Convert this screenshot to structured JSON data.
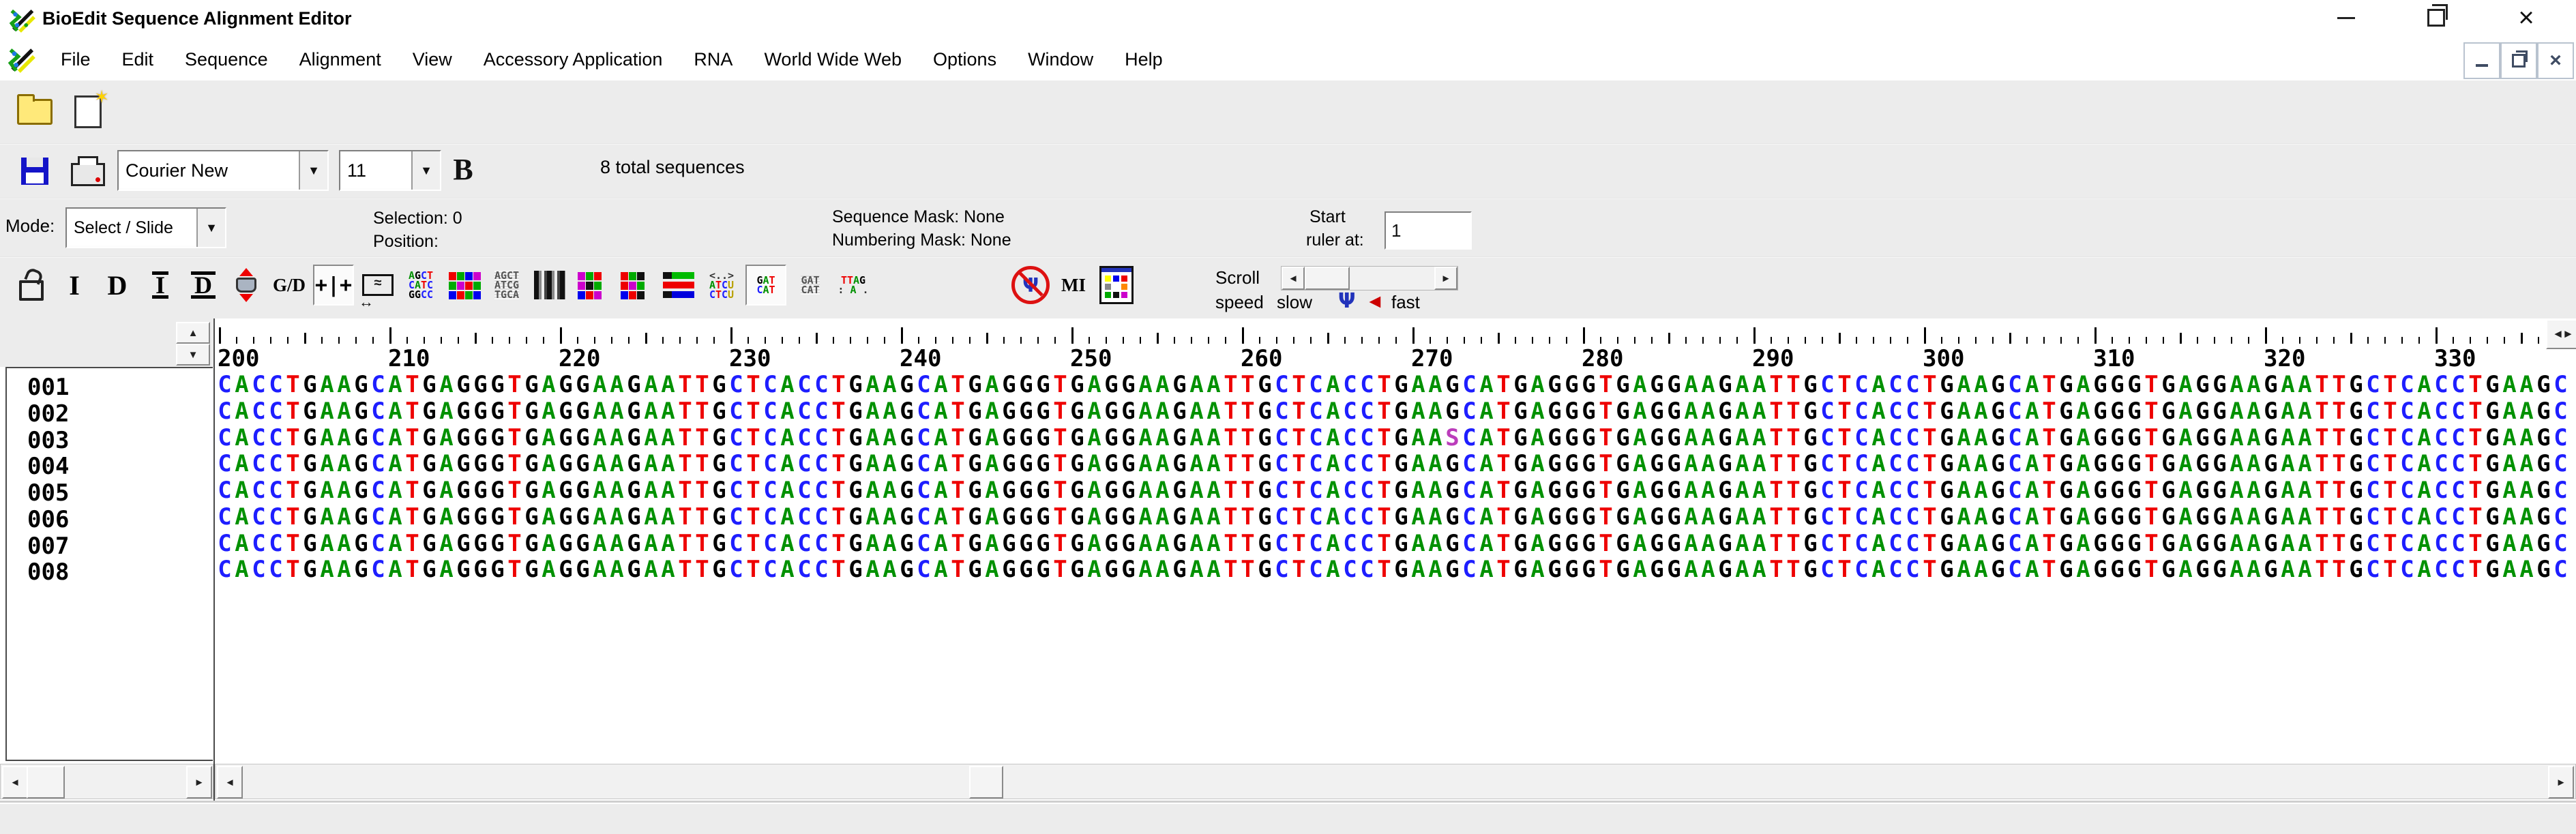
{
  "window": {
    "title": "BioEdit Sequence Alignment Editor"
  },
  "menu": {
    "items": [
      "File",
      "Edit",
      "Sequence",
      "Alignment",
      "View",
      "Accessory Application",
      "RNA",
      "World Wide Web",
      "Options",
      "Window",
      "Help"
    ]
  },
  "format_bar": {
    "font_name": "Courier New",
    "font_size": "11",
    "bold_label": "B",
    "total_sequences_label": "8 total sequences"
  },
  "mode_bar": {
    "mode_label": "Mode:",
    "mode_value": "Select / Slide",
    "selection_label": "Selection: 0",
    "position_label": "Position:",
    "sequence_mask_label": "Sequence Mask: None",
    "numbering_mask_label": "Numbering Mask: None",
    "start_label": "Start",
    "ruler_at_label": "ruler at:",
    "start_ruler_value": "1"
  },
  "tools": {
    "icons": [
      {
        "name": "unlock-icon",
        "type": "unlock"
      },
      {
        "name": "insert-gaps-button",
        "type": "serif",
        "glyph": "I"
      },
      {
        "name": "delete-gaps-button",
        "type": "serif",
        "glyph": "D"
      },
      {
        "name": "insert-limits-button",
        "type": "serif-bars",
        "glyph": "I"
      },
      {
        "name": "delete-limits-button",
        "type": "serif-bars",
        "glyph": "D"
      },
      {
        "name": "grab-and-drag-button",
        "type": "grab"
      },
      {
        "name": "gap-dash-toggle-button",
        "type": "gd",
        "glyph": "G/D"
      },
      {
        "name": "slide-mode-button",
        "type": "slide",
        "glyph": "+|+",
        "pressed": true
      },
      {
        "name": "select-span-button",
        "type": "scan",
        "glyph": "≈"
      },
      {
        "name": "color-letters-button",
        "type": "lines",
        "lines": [
          "AGCT",
          "CATC",
          "GGCC"
        ],
        "colored": true
      },
      {
        "name": "block-colors-button",
        "type": "grid12"
      },
      {
        "name": "plain-letters-button",
        "type": "lines",
        "lines": [
          "AGCT",
          "ATCG",
          "TGCA"
        ],
        "colored": false
      },
      {
        "name": "grayscale-shade-button",
        "type": "bars"
      },
      {
        "name": "inverse-magenta-button",
        "type": "gridm"
      },
      {
        "name": "inverse-red-button",
        "type": "gridr"
      },
      {
        "name": "identity-bars-button",
        "type": "rgb"
      },
      {
        "name": "similarity-view-button",
        "type": "lines",
        "lines": [
          "<..>",
          "ATCU",
          "CTCU"
        ],
        "colored": true
      },
      {
        "name": "translate-colors-button",
        "type": "lines",
        "lines": [
          "GAT",
          "CAT"
        ],
        "colored": true,
        "pressed": true
      },
      {
        "name": "translate-plain-button",
        "type": "lines",
        "lines": [
          "GAT",
          "CAT"
        ],
        "colored": false
      },
      {
        "name": "conservation-dots-button",
        "type": "lines",
        "lines": [
          "TTAG",
          ": A ."
        ],
        "colored": true
      },
      {
        "name": "spacer",
        "type": "spacer"
      },
      {
        "name": "psi-disabled-button",
        "type": "psi",
        "glyph": "Ψ"
      },
      {
        "name": "mutual-information-button",
        "type": "gd",
        "glyph": "MI"
      },
      {
        "name": "color-palette-button",
        "type": "palette"
      }
    ],
    "scroll_speed": {
      "line1": "Scroll",
      "line2": "speed",
      "slow_label": "slow",
      "fast_label": "fast",
      "psi_glyph": "Ψ",
      "arrow_glyph": "◄"
    }
  },
  "alignment": {
    "ruler_start": 200,
    "nucleotide_colors": {
      "A": "#009100",
      "C": "#1e1eff",
      "G": "#000000",
      "T": "#ee0000",
      "S": "#bb3dbb",
      "U": "#b8a000"
    },
    "sequences": [
      {
        "name": "001",
        "seq": "CACCTGAAGCATGAGGGTGAGGAAGAATTGCTCACCTGAAGCATGAGGGTGAGGAAGAATTGCTCACCTGAAGCATGAGGGTGAGGAAGAATTGCTCACCTGAAGCATGAGGGTGAGGAAGAATTGCTCACCTGAAGC"
      },
      {
        "name": "002",
        "seq": "CACCTGAAGCATGAGGGTGAGGAAGAATTGCTCACCTGAAGCATGAGGGTGAGGAAGAATTGCTCACCTGAAGCATGAGGGTGAGGAAGAATTGCTCACCTGAAGCATGAGGGTGAGGAAGAATTGCTCACCTGAAGC"
      },
      {
        "name": "003",
        "seq": "CACCTGAAGCATGAGGGTGAGGAAGAATTGCTCACCTGAAGCATGAGGGTGAGGAAGAATTGCTCACCTGAASCATGAGGGTGAGGAAGAATTGCTCACCTGAAGCATGAGGGTGAGGAAGAATTGCTCACCTGAAGC"
      },
      {
        "name": "004",
        "seq": "CACCTGAAGCATGAGGGTGAGGAAGAATTGCTCACCTGAAGCATGAGGGTGAGGAAGAATTGCTCACCTGAAGCATGAGGGTGAGGAAGAATTGCTCACCTGAAGCATGAGGGTGAGGAAGAATTGCTCACCTGAAGC"
      },
      {
        "name": "005",
        "seq": "CACCTGAAGCATGAGGGTGAGGAAGAATTGCTCACCTGAAGCATGAGGGTGAGGAAGAATTGCTCACCTGAAGCATGAGGGTGAGGAAGAATTGCTCACCTGAAGCATGAGGGTGAGGAAGAATTGCTCACCTGAAGC"
      },
      {
        "name": "006",
        "seq": "CACCTGAAGCATGAGGGTGAGGAAGAATTGCTCACCTGAAGCATGAGGGTGAGGAAGAATTGCTCACCTGAAGCATGAGGGTGAGGAAGAATTGCTCACCTGAAGCATGAGGGTGAGGAAGAATTGCTCACCTGAAGC"
      },
      {
        "name": "007",
        "seq": "CACCTGAAGCATGAGGGTGAGGAAGAATTGCTCACCTGAAGCATGAGGGTGAGGAAGAATTGCTCACCTGAAGCATGAGGGTGAGGAAGAATTGCTCACCTGAAGCATGAGGGTGAGGAAGAATTGCTCACCTGAAGC"
      },
      {
        "name": "008",
        "seq": "CACCTGAAGCATGAGGGTGAGGAAGAATTGCTCACCTGAAGCATGAGGGTGAGGAAGAATTGCTCACCTGAAGCATGAGGGTGAGGAAGAATTGCTCACCTGAAGCATGAGGGTGAGGAAGAATTGCTCACCTGAAGC"
      }
    ]
  }
}
